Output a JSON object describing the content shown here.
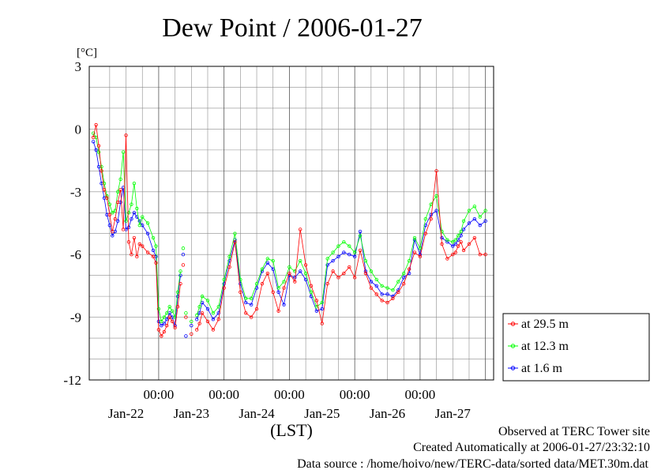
{
  "chart_data": {
    "type": "line",
    "title": "Dew Point / 2006-01-27",
    "ylabel": "[°C]",
    "xlabel": "(LST)",
    "ylim": [
      -12,
      3
    ],
    "yticks": [
      "3",
      "0",
      "-3",
      "-6",
      "-9",
      "-12"
    ],
    "ytick_values": [
      3,
      0,
      -3,
      -6,
      -9,
      -12
    ],
    "xlim_hours": [
      0,
      144
    ],
    "xticks_time": [
      "00:00",
      "00:00",
      "00:00",
      "00:00",
      "00:00"
    ],
    "xticks_date": [
      "Jan-22",
      "Jan-23",
      "Jan-24",
      "Jan-25",
      "Jan-26",
      "Jan-27"
    ],
    "grid": true,
    "legend_position": "right",
    "series": [
      {
        "name": "at 29.5 m",
        "color": "#ff0000",
        "x": [
          0,
          1,
          2,
          3,
          4,
          5,
          6,
          7,
          8,
          9,
          10,
          11,
          12,
          13,
          14,
          15,
          16,
          17,
          18,
          20,
          22,
          23,
          24,
          25,
          26,
          27,
          28,
          29,
          30,
          31,
          32,
          33,
          34,
          36,
          38,
          39,
          40,
          42,
          44,
          46,
          48,
          50,
          52,
          54,
          56,
          58,
          60,
          62,
          64,
          66,
          68,
          70,
          72,
          74,
          76,
          78,
          80,
          82,
          84,
          86,
          88,
          90,
          92,
          94,
          96,
          98,
          100,
          102,
          104,
          106,
          108,
          110,
          112,
          114,
          116,
          118,
          120,
          122,
          124,
          126,
          128,
          130,
          132,
          133,
          134,
          135,
          136,
          138,
          140,
          142,
          144
        ],
        "values": [
          -0.4,
          0.2,
          -0.8,
          -2.0,
          -2.9,
          -3.3,
          -4.1,
          -4.9,
          -4.3,
          -3.5,
          -2.9,
          -4.8,
          -0.3,
          -5.4,
          -6.0,
          -5.2,
          -6.1,
          -5.5,
          -5.6,
          -5.9,
          -6.1,
          -6.4,
          -9.6,
          -9.9,
          -9.7,
          -9.4,
          -9.0,
          -9.2,
          -9.5,
          -8.5,
          -7.4,
          -6.5,
          -9.0,
          -9.8,
          -9.6,
          -9.3,
          -8.8,
          -9.2,
          -9.6,
          -9.1,
          -7.6,
          -6.6,
          -5.4,
          -7.8,
          -8.8,
          -9.0,
          -8.6,
          -7.4,
          -6.9,
          -7.8,
          -8.7,
          -7.6,
          -6.9,
          -7.3,
          -4.8,
          -6.5,
          -7.5,
          -8.2,
          -9.3,
          -7.4,
          -6.8,
          -7.1,
          -6.9,
          -6.6,
          -7.1,
          -5.8,
          -6.9,
          -7.6,
          -7.9,
          -8.2,
          -8.3,
          -8.1,
          -7.8,
          -7.4,
          -6.7,
          -5.9,
          -6.1,
          -5.0,
          -4.3,
          -2.0,
          -5.5,
          -6.2,
          -6.0,
          -5.9,
          -5.6,
          -5.4,
          -5.8,
          -5.5,
          -5.2,
          -6.0,
          -6.0
        ]
      },
      {
        "name": "at 12.3 m",
        "color": "#00ff00",
        "x": [
          0,
          1,
          2,
          3,
          4,
          5,
          6,
          7,
          8,
          9,
          10,
          11,
          12,
          13,
          14,
          15,
          16,
          17,
          18,
          20,
          22,
          23,
          24,
          25,
          26,
          27,
          28,
          29,
          30,
          31,
          32,
          33,
          34,
          36,
          38,
          39,
          40,
          42,
          44,
          46,
          48,
          50,
          52,
          54,
          56,
          58,
          60,
          62,
          64,
          66,
          68,
          70,
          72,
          74,
          76,
          78,
          80,
          82,
          84,
          86,
          88,
          90,
          92,
          94,
          96,
          98,
          100,
          102,
          104,
          106,
          108,
          110,
          112,
          114,
          116,
          118,
          120,
          122,
          124,
          126,
          128,
          130,
          132,
          133,
          134,
          135,
          136,
          138,
          140,
          142,
          144
        ],
        "values": [
          -0.2,
          -0.4,
          -1.1,
          -1.8,
          -2.6,
          -3.2,
          -3.6,
          -4.0,
          -3.9,
          -3.0,
          -2.4,
          -1.1,
          -4.4,
          -4.0,
          -3.6,
          -2.6,
          -3.8,
          -4.6,
          -4.2,
          -4.5,
          -5.2,
          -5.6,
          -8.6,
          -9.2,
          -9.0,
          -8.8,
          -8.5,
          -8.7,
          -9.0,
          -7.8,
          -6.8,
          -5.7,
          -8.8,
          -9.2,
          -8.9,
          -8.5,
          -8.0,
          -8.2,
          -8.8,
          -8.5,
          -7.2,
          -6.1,
          -5.0,
          -7.2,
          -8.1,
          -8.1,
          -7.4,
          -6.7,
          -6.2,
          -6.3,
          -7.6,
          -7.3,
          -6.6,
          -6.8,
          -6.3,
          -6.9,
          -7.8,
          -8.5,
          -8.3,
          -6.2,
          -5.9,
          -5.6,
          -5.4,
          -5.6,
          -5.9,
          -5.1,
          -6.3,
          -6.8,
          -7.2,
          -7.5,
          -7.6,
          -7.7,
          -7.3,
          -6.9,
          -6.3,
          -5.2,
          -5.7,
          -4.3,
          -3.6,
          -3.2,
          -4.9,
          -5.3,
          -5.4,
          -5.3,
          -5.1,
          -4.9,
          -4.4,
          -3.9,
          -3.7,
          -4.2,
          -3.9
        ]
      },
      {
        "name": "at 1.6 m",
        "color": "#0000ff",
        "x": [
          0,
          1,
          2,
          3,
          4,
          5,
          6,
          7,
          8,
          9,
          10,
          11,
          12,
          13,
          14,
          15,
          16,
          17,
          18,
          20,
          22,
          23,
          24,
          25,
          26,
          27,
          28,
          29,
          30,
          31,
          32,
          33,
          34,
          36,
          38,
          39,
          40,
          42,
          44,
          46,
          48,
          50,
          52,
          54,
          56,
          58,
          60,
          62,
          64,
          66,
          68,
          70,
          72,
          74,
          76,
          78,
          80,
          82,
          84,
          86,
          88,
          90,
          92,
          94,
          96,
          98,
          100,
          102,
          104,
          106,
          108,
          110,
          112,
          114,
          116,
          118,
          120,
          122,
          124,
          126,
          128,
          130,
          132,
          133,
          134,
          135,
          136,
          138,
          140,
          142,
          144
        ],
        "values": [
          -0.6,
          -1.0,
          -1.8,
          -2.6,
          -3.3,
          -4.1,
          -4.6,
          -5.1,
          -4.9,
          -4.4,
          -3.5,
          -2.8,
          -4.8,
          -4.7,
          -4.3,
          -4.0,
          -4.2,
          -4.4,
          -4.6,
          -5.0,
          -5.8,
          -6.1,
          -9.2,
          -9.4,
          -9.3,
          -9.1,
          -8.8,
          -9.0,
          -9.4,
          -8.0,
          -7.0,
          -6.0,
          -9.9,
          -9.4,
          -9.1,
          -8.8,
          -8.3,
          -8.6,
          -9.1,
          -8.8,
          -7.4,
          -6.3,
          -5.3,
          -7.4,
          -8.3,
          -8.4,
          -7.6,
          -6.8,
          -6.4,
          -6.7,
          -7.8,
          -8.4,
          -7.0,
          -7.1,
          -6.8,
          -7.2,
          -8.0,
          -8.7,
          -8.6,
          -6.5,
          -6.3,
          -6.1,
          -5.9,
          -6.0,
          -6.1,
          -4.9,
          -6.8,
          -7.3,
          -7.5,
          -7.9,
          -7.9,
          -8.0,
          -7.7,
          -7.1,
          -6.9,
          -5.3,
          -6.0,
          -4.6,
          -4.1,
          -3.9,
          -5.2,
          -5.4,
          -5.6,
          -5.5,
          -5.3,
          -5.1,
          -4.8,
          -4.5,
          -4.3,
          -4.6,
          -4.4
        ]
      }
    ],
    "gaps": [
      [
        32.5,
        37.5
      ]
    ]
  },
  "footer": {
    "line1": "Observed at TERC Tower site",
    "line2": "Created Automatically at 2006-01-27/23:32:10",
    "line3": "Data source : /home/hoivo/new/TERC-data/sorted data/MET.30m.dat"
  }
}
